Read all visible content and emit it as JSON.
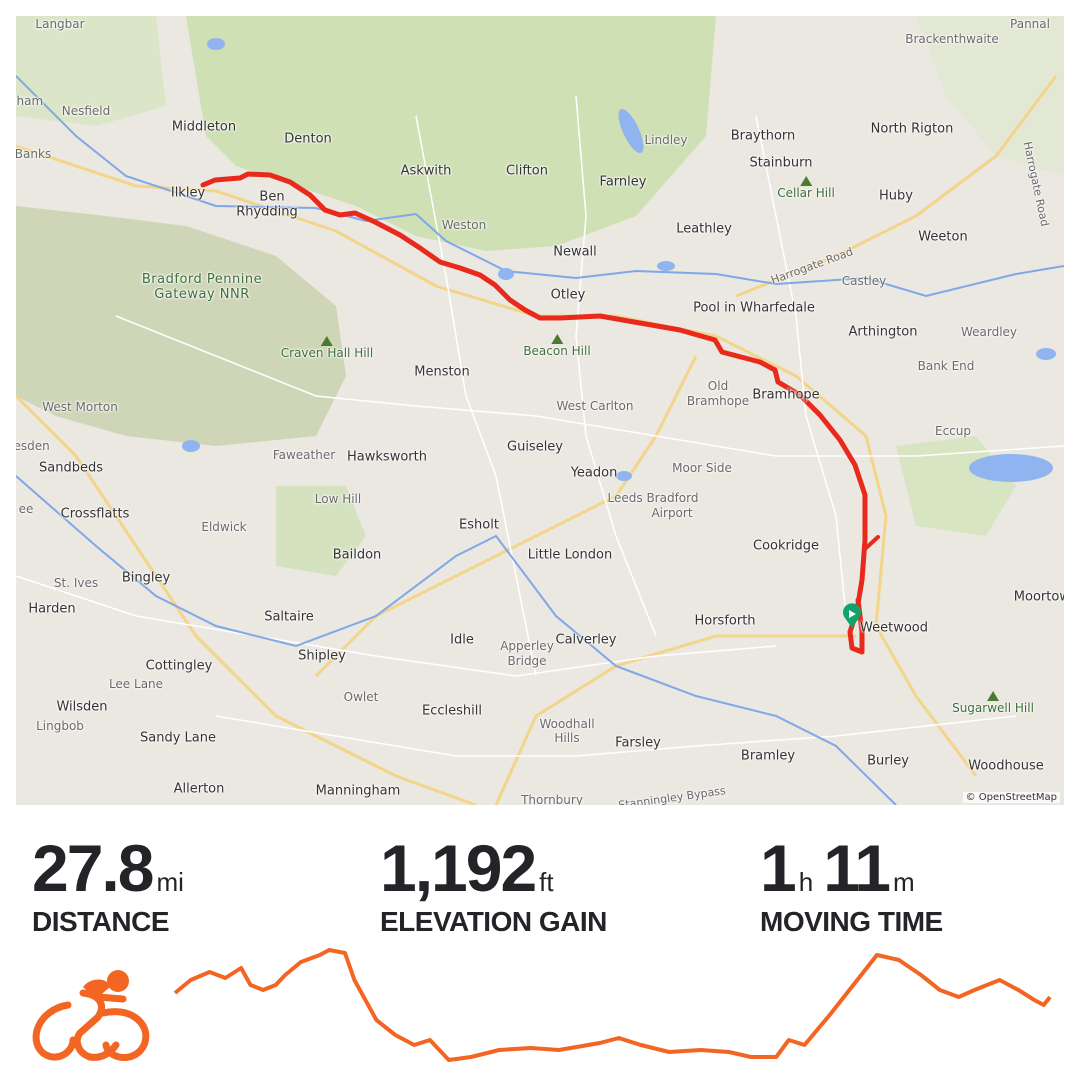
{
  "map": {
    "attribution": "© OpenStreetMap",
    "route_color": "#e8291c",
    "start_marker_color": "#12a36a",
    "places": [
      {
        "name": "Langbar",
        "kind": "gray"
      },
      {
        "name": "Pannal",
        "kind": "gray"
      },
      {
        "name": "Brackenthwaite",
        "kind": "gray"
      },
      {
        "name": "gham",
        "kind": "gray"
      },
      {
        "name": "Nesfield",
        "kind": "gray"
      },
      {
        "name": "Middleton",
        "kind": "town"
      },
      {
        "name": "Denton",
        "kind": "town"
      },
      {
        "name": "Askwith",
        "kind": "town"
      },
      {
        "name": "Clifton",
        "kind": "town"
      },
      {
        "name": "Lindley",
        "kind": "gray"
      },
      {
        "name": "Braythorn",
        "kind": "town"
      },
      {
        "name": "North Rigton",
        "kind": "town"
      },
      {
        "name": "Banks",
        "kind": "gray"
      },
      {
        "name": "Ilkley",
        "kind": "town"
      },
      {
        "name": "Ben",
        "kind": "town"
      },
      {
        "name": "Rhydding",
        "kind": "town"
      },
      {
        "name": "Farnley",
        "kind": "town"
      },
      {
        "name": "Stainburn",
        "kind": "town"
      },
      {
        "name": "Huby",
        "kind": "town"
      },
      {
        "name": "Weston",
        "kind": "gray"
      },
      {
        "name": "Leathley",
        "kind": "town"
      },
      {
        "name": "Weeton",
        "kind": "town"
      },
      {
        "name": "Newall",
        "kind": "town"
      },
      {
        "name": "Castley",
        "kind": "gray"
      },
      {
        "name": "Otley",
        "kind": "town"
      },
      {
        "name": "Pool in Wharfedale",
        "kind": "town"
      },
      {
        "name": "Arthington",
        "kind": "town"
      },
      {
        "name": "Weardley",
        "kind": "gray"
      },
      {
        "name": "Menston",
        "kind": "town"
      },
      {
        "name": "Bank End",
        "kind": "gray"
      },
      {
        "name": "Old",
        "kind": "gray"
      },
      {
        "name": "Bramhope",
        "kind": "gray"
      },
      {
        "name": "Bramhope",
        "kind": "town"
      },
      {
        "name": "West Morton",
        "kind": "gray"
      },
      {
        "name": "West Carlton",
        "kind": "gray"
      },
      {
        "name": "Eccup",
        "kind": "gray"
      },
      {
        "name": "lesden",
        "kind": "gray"
      },
      {
        "name": "Guiseley",
        "kind": "town"
      },
      {
        "name": "Sandbeds",
        "kind": "town"
      },
      {
        "name": "Faweather",
        "kind": "gray"
      },
      {
        "name": "Hawksworth",
        "kind": "town"
      },
      {
        "name": "Moor Side",
        "kind": "gray"
      },
      {
        "name": "Yeadon",
        "kind": "town"
      },
      {
        "name": "Leeds Bradford",
        "kind": "gray"
      },
      {
        "name": "Airport",
        "kind": "gray"
      },
      {
        "name": "Low Hill",
        "kind": "gray"
      },
      {
        "name": "ee",
        "kind": "gray"
      },
      {
        "name": "Crossflatts",
        "kind": "town"
      },
      {
        "name": "Esholt",
        "kind": "town"
      },
      {
        "name": "Eldwick",
        "kind": "gray"
      },
      {
        "name": "Cookridge",
        "kind": "town"
      },
      {
        "name": "Baildon",
        "kind": "town"
      },
      {
        "name": "Little London",
        "kind": "town"
      },
      {
        "name": "St. Ives",
        "kind": "gray"
      },
      {
        "name": "Bingley",
        "kind": "town"
      },
      {
        "name": "Harden",
        "kind": "town"
      },
      {
        "name": "Saltaire",
        "kind": "town"
      },
      {
        "name": "Horsforth",
        "kind": "town"
      },
      {
        "name": "Weetwood",
        "kind": "town"
      },
      {
        "name": "Moortown",
        "kind": "town"
      },
      {
        "name": "Idle",
        "kind": "town"
      },
      {
        "name": "Apperley",
        "kind": "gray"
      },
      {
        "name": "Bridge",
        "kind": "gray"
      },
      {
        "name": "Shipley",
        "kind": "town"
      },
      {
        "name": "Calverley",
        "kind": "town"
      },
      {
        "name": "Cottingley",
        "kind": "town"
      },
      {
        "name": "Lee Lane",
        "kind": "gray"
      },
      {
        "name": "Owlet",
        "kind": "gray"
      },
      {
        "name": "Wilsden",
        "kind": "town"
      },
      {
        "name": "Eccleshill",
        "kind": "town"
      },
      {
        "name": "Lingbob",
        "kind": "gray"
      },
      {
        "name": "Woodhall",
        "kind": "gray"
      },
      {
        "name": "Hills",
        "kind": "gray"
      },
      {
        "name": "Sandy Lane",
        "kind": "town"
      },
      {
        "name": "Farsley",
        "kind": "town"
      },
      {
        "name": "Bramley",
        "kind": "town"
      },
      {
        "name": "Burley",
        "kind": "town"
      },
      {
        "name": "Woodhouse",
        "kind": "town"
      },
      {
        "name": "Allerton",
        "kind": "town"
      },
      {
        "name": "Manningham",
        "kind": "town"
      },
      {
        "name": "Thornbury",
        "kind": "gray"
      },
      {
        "name": "Stanningley Bypass",
        "kind": "road"
      },
      {
        "name": "Harrogate Road",
        "kind": "road"
      },
      {
        "name": "Harrogate Road",
        "kind": "road"
      },
      {
        "name": "Eccup",
        "kind": "gray"
      }
    ],
    "hills": [
      "Cellar Hill",
      "Beacon Hill",
      "Craven Hall Hill",
      "Sugarwell Hill"
    ],
    "nature_reserve": [
      "Bradford Pennine",
      "Gateway NNR"
    ]
  },
  "stats": {
    "distance": {
      "value": "27.8",
      "unit": "mi",
      "label": "DISTANCE"
    },
    "elevation": {
      "value": "1,192",
      "unit": "ft",
      "label": "ELEVATION GAIN"
    },
    "moving_time": {
      "hours": "1",
      "hours_unit": "h",
      "minutes": "11",
      "minutes_unit": "m",
      "label": "MOVING TIME"
    }
  },
  "activity": {
    "type_icon": "cycling-icon",
    "accent_color": "#f26522"
  },
  "elevation_profile": {
    "distance_mi": [
      0,
      0.5,
      1.1,
      1.6,
      2.1,
      2.4,
      2.8,
      3.2,
      3.5,
      4.0,
      4.6,
      4.9,
      5.4,
      5.7,
      6.4,
      7.0,
      7.6,
      8.1,
      8.7,
      9.4,
      10.3,
      11.3,
      12.2,
      13.5,
      14.1,
      14.8,
      15.7,
      16.7,
      17.6,
      18.3,
      19.1,
      19.5,
      20.0,
      20.8,
      21.8,
      22.3,
      23.0,
      23.7,
      24.3,
      24.9,
      25.4,
      26.2,
      26.8,
      27.3,
      27.6,
      27.8
    ],
    "relative_elevation": [
      67,
      80,
      88,
      82,
      92,
      75,
      70,
      75,
      85,
      98,
      105,
      110,
      107,
      80,
      40,
      25,
      15,
      20,
      0,
      3,
      10,
      12,
      10,
      17,
      22,
      15,
      8,
      10,
      8,
      3,
      3,
      20,
      15,
      45,
      85,
      105,
      100,
      85,
      70,
      63,
      70,
      80,
      70,
      60,
      55,
      63
    ]
  }
}
